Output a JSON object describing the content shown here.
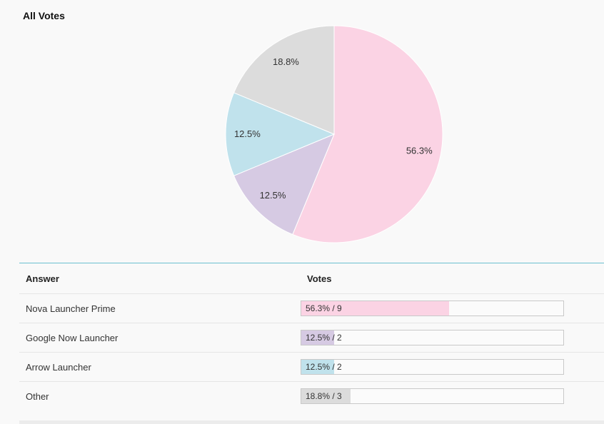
{
  "chart_data": {
    "type": "pie",
    "title": "All Votes",
    "categories": [
      "Nova Launcher Prime",
      "Google Now Launcher",
      "Arrow Launcher",
      "Other"
    ],
    "values": [
      9,
      2,
      2,
      3
    ],
    "percent_labels": [
      "56.3%",
      "12.5%",
      "12.5%",
      "18.8%"
    ],
    "colors": [
      "#fbd3e4",
      "#d6cae3",
      "#c0e2ec",
      "#dcdcdc"
    ],
    "legend": "none"
  },
  "table": {
    "headers": {
      "answer": "Answer",
      "votes": "Votes"
    },
    "rows": [
      {
        "answer": "Nova Launcher Prime",
        "bar_text": "56.3% / 9",
        "fraction": 0.563,
        "color": "#fbd3e4"
      },
      {
        "answer": "Google Now Launcher",
        "bar_text": "12.5% / 2",
        "fraction": 0.125,
        "color": "#d6cae3"
      },
      {
        "answer": "Arrow Launcher",
        "bar_text": "12.5% / 2",
        "fraction": 0.125,
        "color": "#c0e2ec"
      },
      {
        "answer": "Other",
        "bar_text": "18.8% / 3",
        "fraction": 0.188,
        "color": "#dcdcdc"
      }
    ]
  }
}
